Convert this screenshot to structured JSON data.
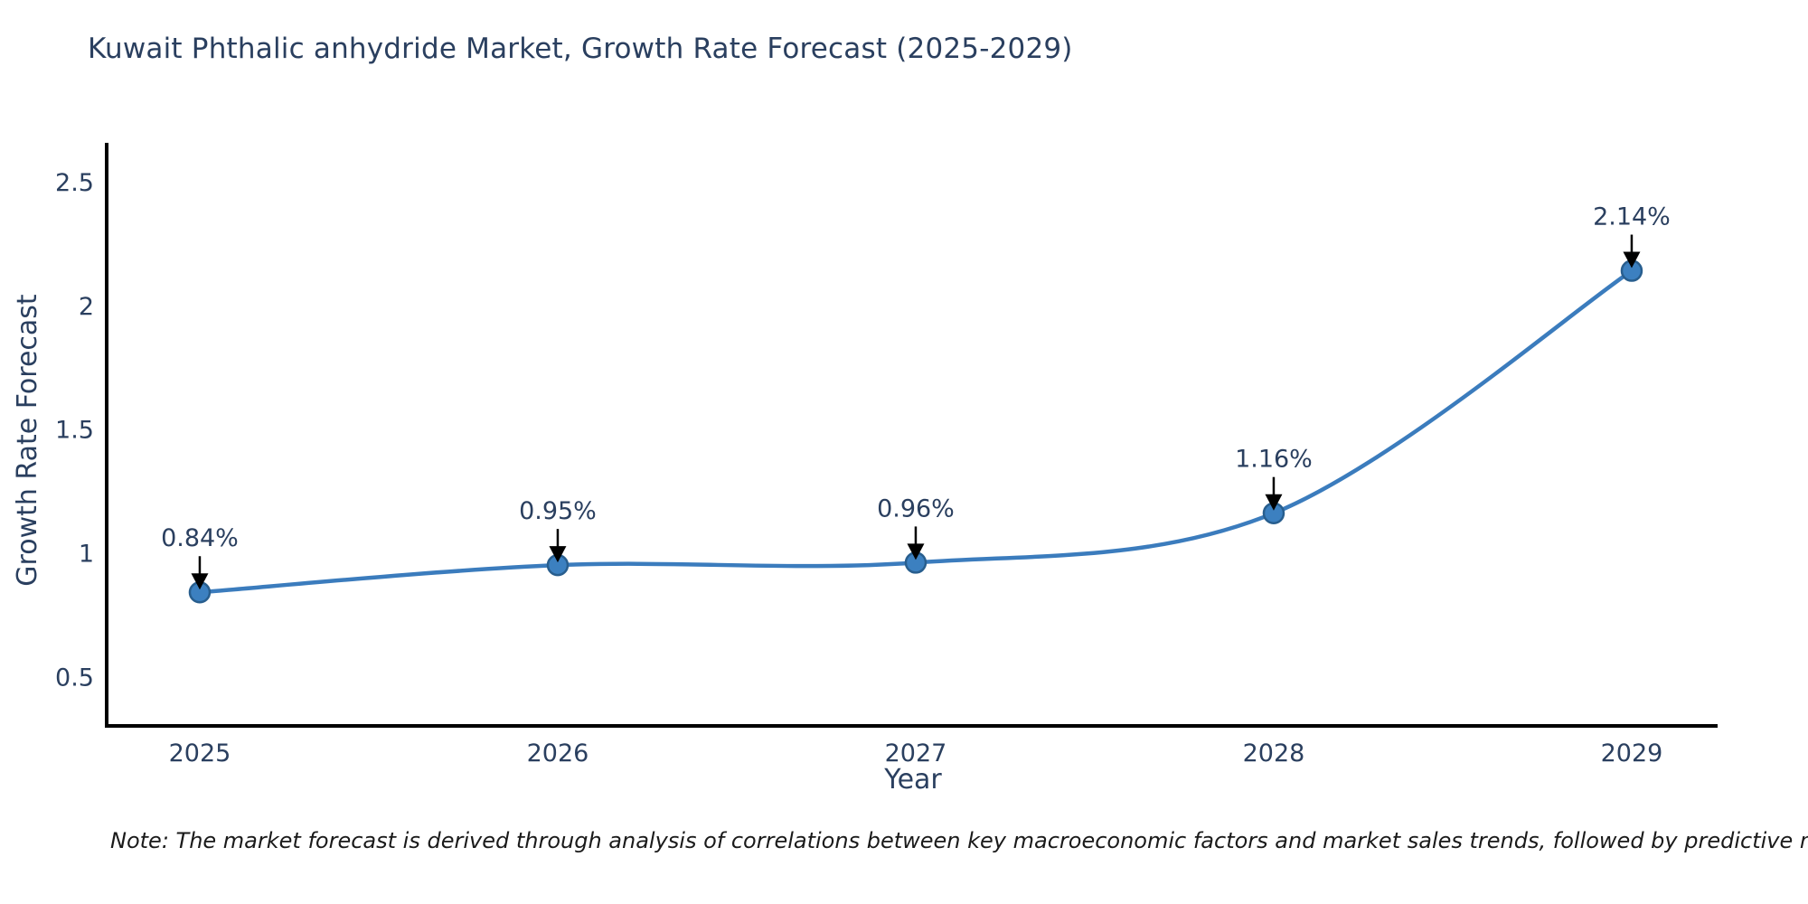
{
  "page": {
    "background": "#ffffff"
  },
  "chart_data": {
    "type": "line",
    "title": "Kuwait Phthalic anhydride Market, Growth Rate Forecast (2025-2029)",
    "xlabel": "Year",
    "ylabel": "Growth Rate Forecast",
    "x": [
      2025,
      2026,
      2027,
      2028,
      2029
    ],
    "series": [
      {
        "name": "Growth Rate Forecast",
        "values": [
          0.84,
          0.95,
          0.96,
          1.16,
          2.14
        ]
      }
    ],
    "point_labels": [
      "0.84%",
      "0.95%",
      "0.96%",
      "1.16%",
      "2.14%"
    ],
    "xticks": [
      "2025",
      "2026",
      "2027",
      "2028",
      "2029"
    ],
    "yticks": [
      "0.5",
      "1",
      "1.5",
      "2",
      "2.5"
    ],
    "xlim": [
      2024.74,
      2029.24
    ],
    "ylim": [
      0.3,
      2.65
    ],
    "line_shape": "spline",
    "grid": false,
    "legend_position": "none",
    "colors": {
      "line": "#3b7cbd",
      "marker_fill": "#3c80c0",
      "marker_edge": "#285e8e",
      "arrow": "#000000",
      "text": "#2a3f5f",
      "axis": "#000000"
    }
  },
  "footnote": {
    "text": "Note: The market forecast is derived through analysis of correlations between key macroeconomic factors and market sales trends, followed by predictive modeling to project future sales"
  }
}
